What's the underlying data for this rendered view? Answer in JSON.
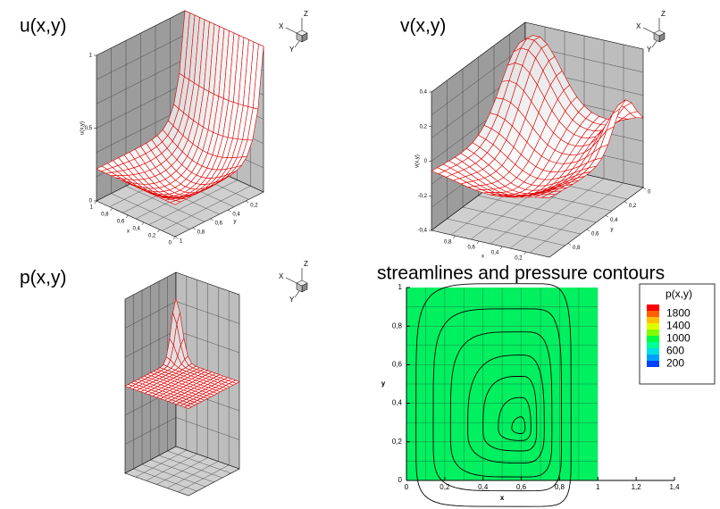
{
  "chart_data": [
    {
      "type": "surface3d",
      "title": "u(x,y)",
      "zlabel": "u(x,y)",
      "xlabel": "x",
      "ylabel": "y",
      "zlim": [
        0,
        1
      ],
      "zticks": [
        0,
        {
          "value": 0.5,
          "label": "0,5"
        },
        1
      ],
      "xlim": [
        0,
        1
      ],
      "xticks": [
        1,
        {
          "value": 0.8,
          "label": "0,8"
        },
        {
          "value": 0.6,
          "label": "0,6"
        },
        {
          "value": 0.4,
          "label": "0,4"
        },
        {
          "value": 0.2,
          "label": "0,2"
        },
        0
      ],
      "ylim": [
        0,
        1
      ],
      "yticks": [
        {
          "value": 0.2,
          "label": "0,2"
        },
        {
          "value": 0.4,
          "label": "0,4"
        },
        {
          "value": 0.6,
          "label": "0,6"
        },
        {
          "value": 0.8,
          "label": "0,8"
        },
        1
      ],
      "triad": [
        "X",
        "Y",
        "Z"
      ],
      "color": "#e00000"
    },
    {
      "type": "surface3d",
      "title": "v(x,y)",
      "zlabel": "v(x,y)",
      "xlabel": "x",
      "ylabel": "y",
      "zlim": [
        -0.4,
        0.4
      ],
      "zticks": [
        {
          "value": -0.4,
          "label": "-0,4"
        },
        {
          "value": -0.2,
          "label": "-0,2"
        },
        0,
        {
          "value": 0.2,
          "label": "0,2"
        },
        {
          "value": 0.4,
          "label": "0,4"
        }
      ],
      "xlim": [
        0,
        1
      ],
      "xticks": [
        {
          "value": 0.8,
          "label": "0,8"
        },
        {
          "value": 0.6,
          "label": "0,6"
        },
        {
          "value": 0.4,
          "label": "0,4"
        },
        {
          "value": 0.2,
          "label": "0,2"
        }
      ],
      "ylim": [
        0,
        1
      ],
      "yticks": [
        0,
        {
          "value": 0.2,
          "label": "0,2"
        },
        {
          "value": 0.4,
          "label": "0,4"
        },
        {
          "value": 0.6,
          "label": "0,6"
        },
        {
          "value": 0.8,
          "label": "0,8"
        }
      ],
      "triad": [
        "X",
        "Y",
        "Z"
      ],
      "color": "#e00000"
    },
    {
      "type": "surface3d",
      "title": "p(x,y)",
      "triad": [
        "X",
        "Y",
        "Z"
      ],
      "color": "#e00000"
    },
    {
      "type": "contour",
      "title": "streamlines and pressure contours",
      "xlabel": "x",
      "ylabel": "y",
      "xlim": [
        0,
        1.4
      ],
      "ylim": [
        0,
        1
      ],
      "xticks": [
        0,
        {
          "value": 0.2,
          "label": "0,2"
        },
        {
          "value": 0.4,
          "label": "0,4"
        },
        {
          "value": 0.6,
          "label": "0,6"
        },
        {
          "value": 0.8,
          "label": "0,8"
        },
        1,
        {
          "value": 1.2,
          "label": "1,2"
        },
        {
          "value": 1.4,
          "label": "1,4"
        }
      ],
      "yticks": [
        0,
        {
          "value": 0.2,
          "label": "0,2"
        },
        {
          "value": 0.4,
          "label": "0,4"
        },
        {
          "value": 0.6,
          "label": "0,6"
        },
        {
          "value": 0.8,
          "label": "0,8"
        },
        1
      ],
      "fill": "#00f060",
      "grid": true,
      "legend": {
        "title": "p(x,y)",
        "colors": [
          "#ff0000",
          "#ff6000",
          "#ffc000",
          "#e0ff00",
          "#80ff00",
          "#00ff40",
          "#00ff99",
          "#00e0e0",
          "#00a0ff",
          "#0040ff"
        ],
        "labels": [
          1800,
          1400,
          1000,
          600,
          200
        ]
      }
    }
  ]
}
